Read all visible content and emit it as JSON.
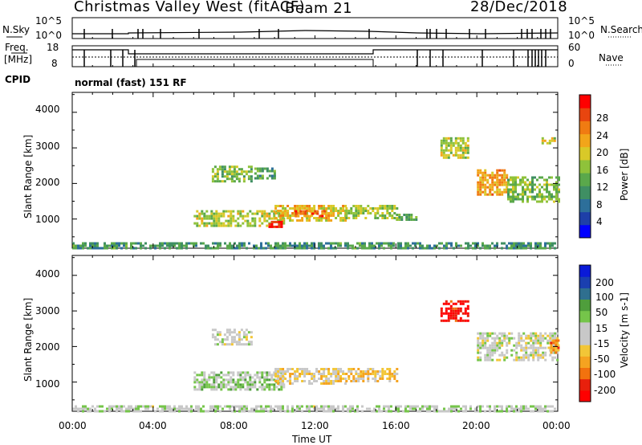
{
  "header": {
    "station": "Christmas Valley West (fitACF)",
    "beam": "Beam 21",
    "date": "28/Dec/2018"
  },
  "top_panels": {
    "nsky_label": "N.Sky",
    "nsky_ticks": [
      "10^5",
      "10^0"
    ],
    "nsearch_label": "N.Search",
    "nsearch_ticks": [
      "10^5",
      "10^0"
    ],
    "freq_label_1": "Freq.",
    "freq_label_2": "[MHz]",
    "freq_ticks": [
      "18",
      "8"
    ],
    "nave_label": "Nave",
    "nave_ticks": [
      "60",
      "0"
    ],
    "cpid_label": "CPID",
    "cpid_text": "normal (fast) 151 RF"
  },
  "colors": {
    "power_scale": [
      "#0000ff",
      "#1e3fa8",
      "#2d6f9a",
      "#3f8f63",
      "#5aa84b",
      "#8fc23a",
      "#d9c928",
      "#f2a51a",
      "#f07b12",
      "#e8450f",
      "#ff0000"
    ],
    "velocity_scale": [
      "#ff0000",
      "#e8200c",
      "#f2720e",
      "#f5a320",
      "#f2c637",
      "#c8c8c8",
      "#c8c8c8",
      "#75c54a",
      "#4f9e3c",
      "#2f6f8f",
      "#1a3fb0",
      "#0a1ad8"
    ]
  },
  "chart_data": [
    {
      "type": "heatmap",
      "parameter": "Power",
      "ylabel": "Slant Range [km]",
      "yticks": [
        "4000",
        "3000",
        "2000",
        "1000"
      ],
      "ylim": [
        180,
        4560
      ],
      "xticks": [
        "00:00",
        "04:00",
        "08:00",
        "12:00",
        "16:00",
        "20:00",
        "00:00"
      ],
      "xlim_hours": [
        0,
        24
      ],
      "colorbar_label": "Power [dB]",
      "colorbar_ticks": [
        "28",
        "24",
        "20",
        "16",
        "12",
        "8",
        "4"
      ],
      "colorbar_range": [
        0,
        30
      ],
      "regions": [
        {
          "t0": 0.0,
          "t1": 23.9,
          "r0": 180,
          "r1": 350,
          "value": 10
        },
        {
          "t0": 6.9,
          "t1": 8.9,
          "r0": 2050,
          "r1": 2500,
          "value": 14
        },
        {
          "t0": 9.0,
          "t1": 10.0,
          "r0": 2150,
          "r1": 2450,
          "value": 11
        },
        {
          "t0": 6.0,
          "t1": 10.5,
          "r0": 800,
          "r1": 1250,
          "value": 16
        },
        {
          "t0": 10.0,
          "t1": 13.5,
          "r0": 950,
          "r1": 1400,
          "value": 19
        },
        {
          "t0": 13.5,
          "t1": 16.0,
          "r0": 1000,
          "r1": 1400,
          "value": 15
        },
        {
          "t0": 9.7,
          "t1": 10.3,
          "r0": 800,
          "r1": 950,
          "value": 28
        },
        {
          "t0": 11.0,
          "t1": 12.5,
          "r0": 1050,
          "r1": 1250,
          "value": 24
        },
        {
          "t0": 16.0,
          "t1": 17.0,
          "r0": 1000,
          "r1": 1150,
          "value": 12
        },
        {
          "t0": 18.2,
          "t1": 19.6,
          "r0": 2700,
          "r1": 3300,
          "value": 16
        },
        {
          "t0": 20.0,
          "t1": 21.5,
          "r0": 1700,
          "r1": 2400,
          "value": 21
        },
        {
          "t0": 21.5,
          "t1": 24.0,
          "r0": 1500,
          "r1": 2200,
          "value": 14
        },
        {
          "t0": 23.2,
          "t1": 23.9,
          "r0": 3100,
          "r1": 3300,
          "value": 17
        }
      ]
    },
    {
      "type": "heatmap",
      "parameter": "Velocity",
      "ylabel": "Slant Range [km]",
      "yticks": [
        "4000",
        "3000",
        "2000",
        "1000"
      ],
      "ylim": [
        180,
        4560
      ],
      "xticks": [
        "00:00",
        "04:00",
        "08:00",
        "12:00",
        "16:00",
        "20:00",
        "00:00"
      ],
      "xlim_hours": [
        0,
        24
      ],
      "xlabel": "Time UT",
      "colorbar_label": "Velocity [m s-1]",
      "colorbar_ticks": [
        "200",
        "100",
        "50",
        "15",
        "-15",
        "-50",
        "-100",
        "-200"
      ],
      "colorbar_range": [
        -250,
        250
      ],
      "regions": [
        {
          "t0": 0.0,
          "t1": 23.9,
          "r0": 180,
          "r1": 350,
          "value": 20
        },
        {
          "t0": 6.9,
          "t1": 8.9,
          "r0": 2050,
          "r1": 2500,
          "value": 0
        },
        {
          "t0": 6.0,
          "t1": 10.5,
          "r0": 800,
          "r1": 1300,
          "value": 40
        },
        {
          "t0": 10.0,
          "t1": 13.5,
          "r0": 950,
          "r1": 1400,
          "value": -40
        },
        {
          "t0": 13.5,
          "t1": 16.0,
          "r0": 1000,
          "r1": 1400,
          "value": -60
        },
        {
          "t0": 18.2,
          "t1": 19.6,
          "r0": 2700,
          "r1": 3300,
          "value": -220
        },
        {
          "t0": 20.0,
          "t1": 24.0,
          "r0": 1600,
          "r1": 2400,
          "value": 0
        },
        {
          "t0": 23.5,
          "t1": 24.0,
          "r0": 1800,
          "r1": 2200,
          "value": -120
        }
      ]
    }
  ]
}
